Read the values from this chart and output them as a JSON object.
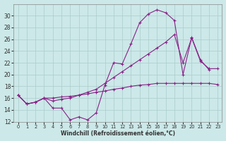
{
  "xlabel": "Windchill (Refroidissement éolien,°C)",
  "bg_color": "#cce8e8",
  "grid_color": "#aacccc",
  "line_color": "#882288",
  "ylim": [
    12,
    32
  ],
  "xlim": [
    -0.5,
    23.5
  ],
  "yticks": [
    12,
    14,
    16,
    18,
    20,
    22,
    24,
    26,
    28,
    30
  ],
  "xticks": [
    0,
    1,
    2,
    3,
    4,
    5,
    6,
    7,
    8,
    9,
    10,
    11,
    12,
    13,
    14,
    15,
    16,
    17,
    18,
    19,
    20,
    21,
    22,
    23
  ],
  "line1_x": [
    0,
    1,
    2,
    3,
    4,
    5,
    6,
    7,
    8,
    9,
    10,
    11,
    12,
    13,
    14,
    15,
    16,
    17,
    18,
    19,
    20,
    21,
    22,
    23
  ],
  "line1_y": [
    16.5,
    15.0,
    15.3,
    16.0,
    14.3,
    14.3,
    12.3,
    12.8,
    12.3,
    13.5,
    18.2,
    22.0,
    21.8,
    25.2,
    28.8,
    30.3,
    31.0,
    30.5,
    29.2,
    20.0,
    26.3,
    22.5,
    20.8,
    null
  ],
  "line2_x": [
    0,
    1,
    2,
    3,
    4,
    5,
    6,
    7,
    8,
    9,
    10,
    11,
    12,
    13,
    14,
    15,
    16,
    17,
    18,
    19,
    20,
    21,
    22,
    23
  ],
  "line2_y": [
    16.5,
    15.0,
    15.3,
    16.0,
    16.0,
    16.2,
    16.3,
    16.5,
    16.7,
    17.0,
    17.2,
    17.5,
    17.7,
    18.0,
    18.2,
    18.3,
    18.5,
    18.5,
    18.5,
    18.5,
    18.5,
    18.5,
    18.5,
    18.3
  ],
  "line3_x": [
    0,
    1,
    2,
    3,
    4,
    5,
    6,
    7,
    8,
    9,
    10,
    11,
    12,
    13,
    14,
    15,
    16,
    17,
    18,
    19,
    20,
    21,
    22,
    23
  ],
  "line3_y": [
    16.5,
    15.0,
    15.3,
    16.0,
    15.5,
    15.8,
    16.0,
    16.5,
    17.0,
    17.5,
    18.5,
    19.5,
    20.5,
    21.5,
    22.5,
    23.5,
    24.5,
    25.5,
    26.8,
    22.0,
    26.2,
    22.3,
    21.0,
    21.0
  ]
}
